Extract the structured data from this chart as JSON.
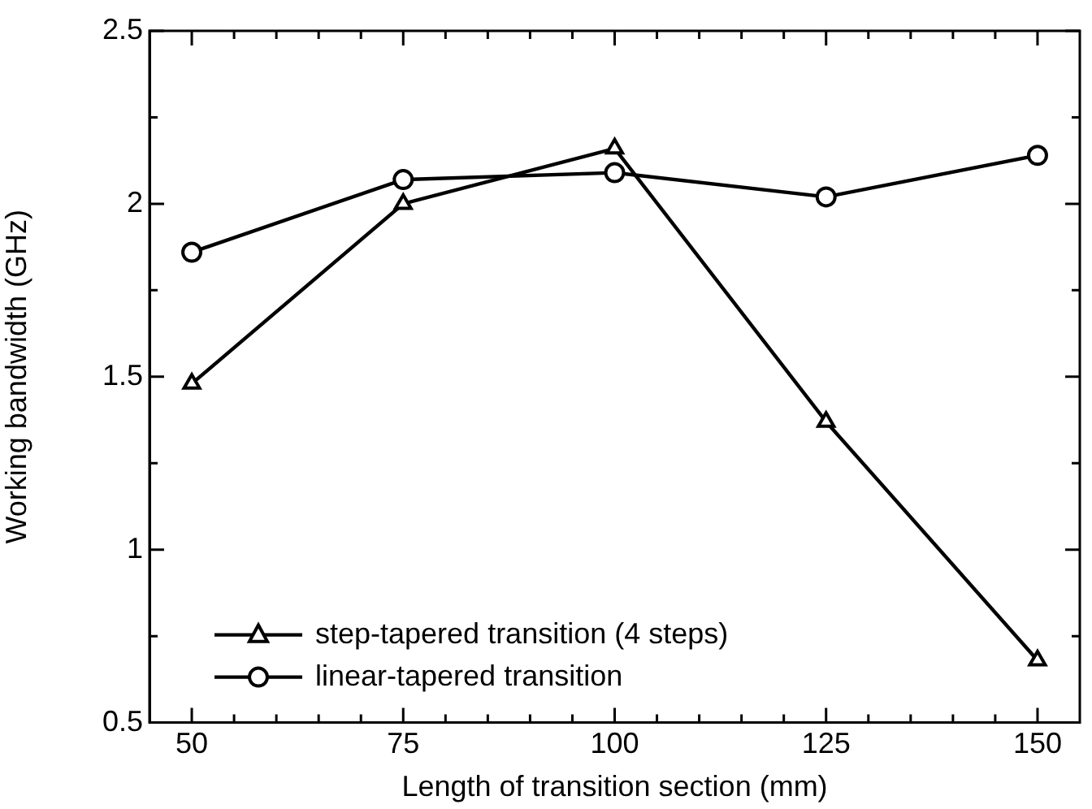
{
  "chart_data": {
    "type": "line",
    "xlabel": "Length of transition section (mm)",
    "ylabel": "Working bandwidth (GHz)",
    "x": [
      50,
      75,
      100,
      125,
      150
    ],
    "series": [
      {
        "name": "step-tapered transition (4 steps)",
        "color": "#000000",
        "marker": "triangle",
        "values": [
          1.48,
          2.0,
          2.16,
          1.37,
          0.68
        ]
      },
      {
        "name": "linear-tapered transition",
        "color": "#000000",
        "marker": "circle",
        "values": [
          1.86,
          2.07,
          2.09,
          2.02,
          2.14
        ]
      }
    ],
    "xlim": [
      45,
      155
    ],
    "xticks": [
      {
        "value": 50,
        "label": "50"
      },
      {
        "value": 55,
        "label": null
      },
      {
        "value": 60,
        "label": null
      },
      {
        "value": 65,
        "label": null
      },
      {
        "value": 70,
        "label": null
      },
      {
        "value": 75,
        "label": "75"
      },
      {
        "value": 80,
        "label": null
      },
      {
        "value": 85,
        "label": null
      },
      {
        "value": 90,
        "label": null
      },
      {
        "value": 95,
        "label": null
      },
      {
        "value": 100,
        "label": "100"
      },
      {
        "value": 105,
        "label": null
      },
      {
        "value": 110,
        "label": null
      },
      {
        "value": 115,
        "label": null
      },
      {
        "value": 120,
        "label": null
      },
      {
        "value": 125,
        "label": "125"
      },
      {
        "value": 130,
        "label": null
      },
      {
        "value": 135,
        "label": null
      },
      {
        "value": 140,
        "label": null
      },
      {
        "value": 145,
        "label": null
      },
      {
        "value": 150,
        "label": "150"
      }
    ],
    "ylim": [
      0.5,
      2.5
    ],
    "yticks": [
      0.5,
      {
        "value": 0.75,
        "label": null
      },
      1,
      {
        "value": 1.25,
        "label": null
      },
      1.5,
      {
        "value": 1.75,
        "label": null
      },
      2,
      {
        "value": 2.25,
        "label": null
      },
      2.5
    ],
    "grid": false,
    "legend": "bottom left",
    "line_style": "solid"
  }
}
